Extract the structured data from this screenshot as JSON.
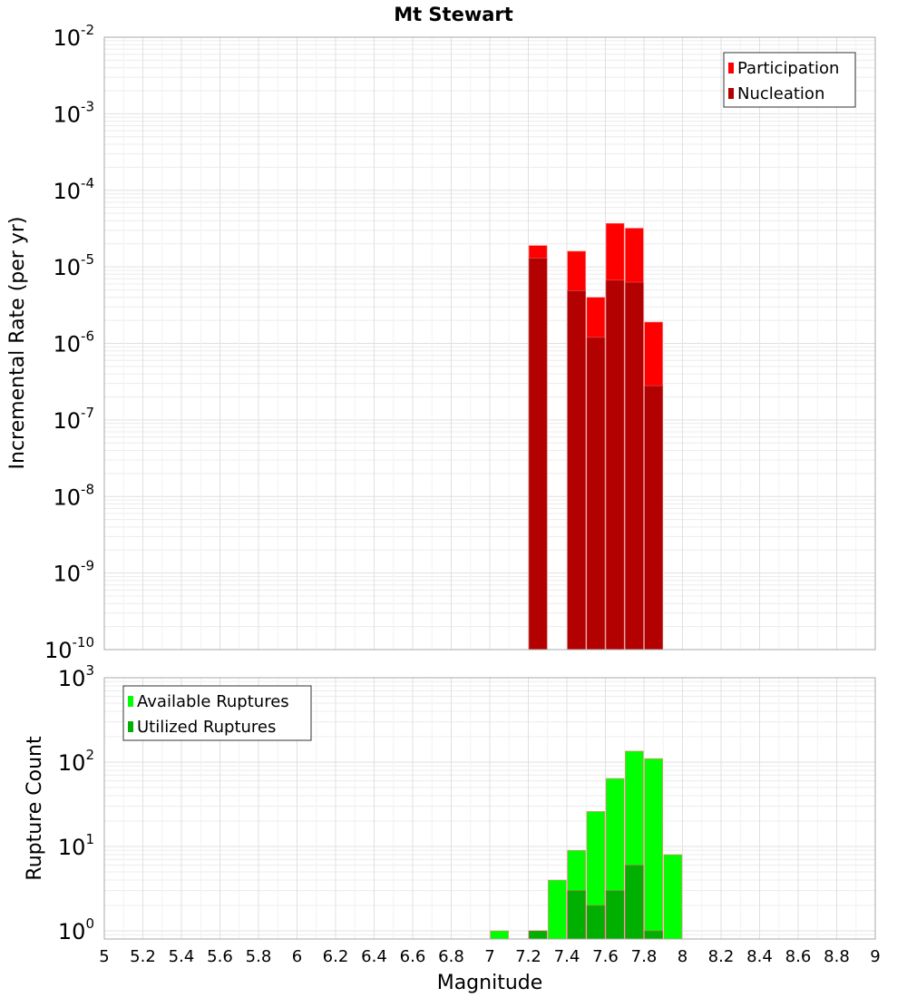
{
  "chart_data": [
    {
      "type": "bar",
      "title": "Mt Stewart",
      "xlabel": "Magnitude",
      "ylabel": "Incremental Rate (per yr)",
      "yscale": "log",
      "ylim": [
        1e-10,
        0.01
      ],
      "xlim": [
        5,
        9
      ],
      "grid": true,
      "legend_position": "top-right",
      "x": [
        7.25,
        7.45,
        7.55,
        7.65,
        7.75,
        7.85
      ],
      "series": [
        {
          "name": "Participation",
          "color": "#ff0000",
          "values": [
            1.9e-05,
            1.6e-05,
            4e-06,
            3.7e-05,
            3.2e-05,
            1.9e-06
          ]
        },
        {
          "name": "Nucleation",
          "color": "#b30000",
          "values": [
            1.3e-05,
            4.9e-06,
            1.2e-06,
            6.7e-06,
            6.3e-06,
            2.8e-07
          ]
        }
      ],
      "ytick_exponents": [
        -10,
        -9,
        -8,
        -7,
        -6,
        -5,
        -4,
        -3,
        -2
      ]
    },
    {
      "type": "bar",
      "xlabel": "Magnitude",
      "ylabel": "Rupture Count",
      "yscale": "log",
      "ylim": [
        0.8,
        1000
      ],
      "xlim": [
        5,
        9
      ],
      "grid": true,
      "legend_position": "top-left",
      "x": [
        7.05,
        7.25,
        7.35,
        7.45,
        7.55,
        7.65,
        7.75,
        7.85,
        7.95
      ],
      "series": [
        {
          "name": "Available Ruptures",
          "color": "#00ff00",
          "values": [
            1,
            1,
            4,
            9,
            26,
            64,
            135,
            110,
            8
          ]
        },
        {
          "name": "Utilized Ruptures",
          "color": "#00b000",
          "values": [
            0,
            1,
            0,
            3,
            2,
            3,
            6,
            1,
            0
          ]
        }
      ],
      "ytick_exponents": [
        0,
        1,
        2,
        3
      ],
      "xticks": [
        "5",
        "5.2",
        "5.4",
        "5.6",
        "5.8",
        "6",
        "6.2",
        "6.4",
        "6.6",
        "6.8",
        "7",
        "7.2",
        "7.4",
        "7.6",
        "7.8",
        "8",
        "8.2",
        "8.4",
        "8.6",
        "8.8",
        "9"
      ]
    }
  ]
}
